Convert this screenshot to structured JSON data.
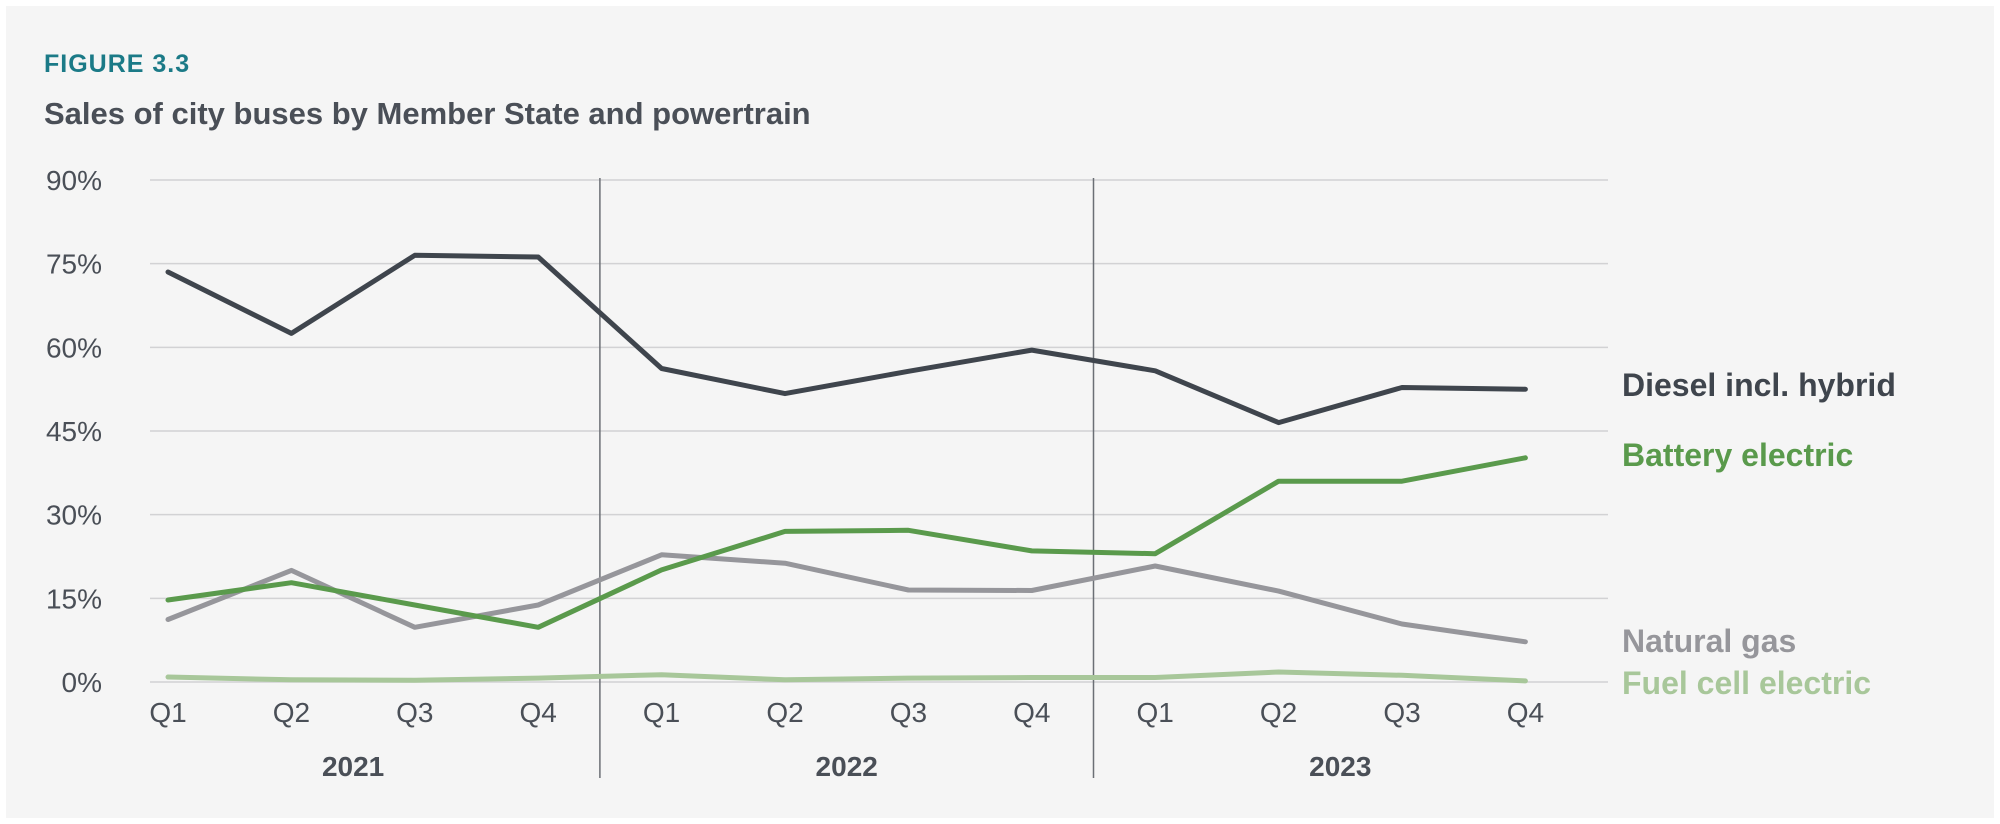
{
  "figure": {
    "label": "FIGURE 3.3",
    "title": "Sales of city buses by Member State and powertrain"
  },
  "chart_data": {
    "type": "line",
    "title": "Sales of city buses by Member State and powertrain",
    "x": [
      "Q1",
      "Q2",
      "Q3",
      "Q4",
      "Q1",
      "Q2",
      "Q3",
      "Q4",
      "Q1",
      "Q2",
      "Q3",
      "Q4"
    ],
    "years": [
      {
        "label": "2021",
        "start": 0,
        "end": 3
      },
      {
        "label": "2022",
        "start": 4,
        "end": 7
      },
      {
        "label": "2023",
        "start": 8,
        "end": 11
      }
    ],
    "ylim": [
      0,
      90
    ],
    "yticks": [
      0,
      15,
      30,
      45,
      60,
      75,
      90
    ],
    "ytick_labels": [
      "0%",
      "15%",
      "30%",
      "45%",
      "60%",
      "75%",
      "90%"
    ],
    "grid": true,
    "legend": "right, labels at line ends",
    "series": [
      {
        "name": "Diesel incl. hybrid",
        "color": "#3f454d",
        "values": [
          73.5,
          62.5,
          76.5,
          76.2,
          56.2,
          51.7,
          55.7,
          59.5,
          55.8,
          46.5,
          52.8,
          52.5
        ]
      },
      {
        "name": "Battery electric",
        "color": "#5a9a4c",
        "values": [
          14.7,
          17.8,
          13.8,
          9.8,
          20.1,
          27.0,
          27.2,
          23.5,
          23.0,
          36.0,
          36.0,
          40.2
        ]
      },
      {
        "name": "Natural gas",
        "color": "#96969b",
        "values": [
          11.2,
          20.0,
          9.8,
          13.8,
          22.8,
          21.3,
          16.5,
          16.4,
          20.8,
          16.3,
          10.4,
          7.2
        ]
      },
      {
        "name": "Fuel cell electric",
        "color": "#a8c79a",
        "values": [
          0.9,
          0.4,
          0.3,
          0.7,
          1.3,
          0.4,
          0.7,
          0.8,
          0.8,
          1.8,
          1.2,
          0.2
        ]
      }
    ]
  }
}
